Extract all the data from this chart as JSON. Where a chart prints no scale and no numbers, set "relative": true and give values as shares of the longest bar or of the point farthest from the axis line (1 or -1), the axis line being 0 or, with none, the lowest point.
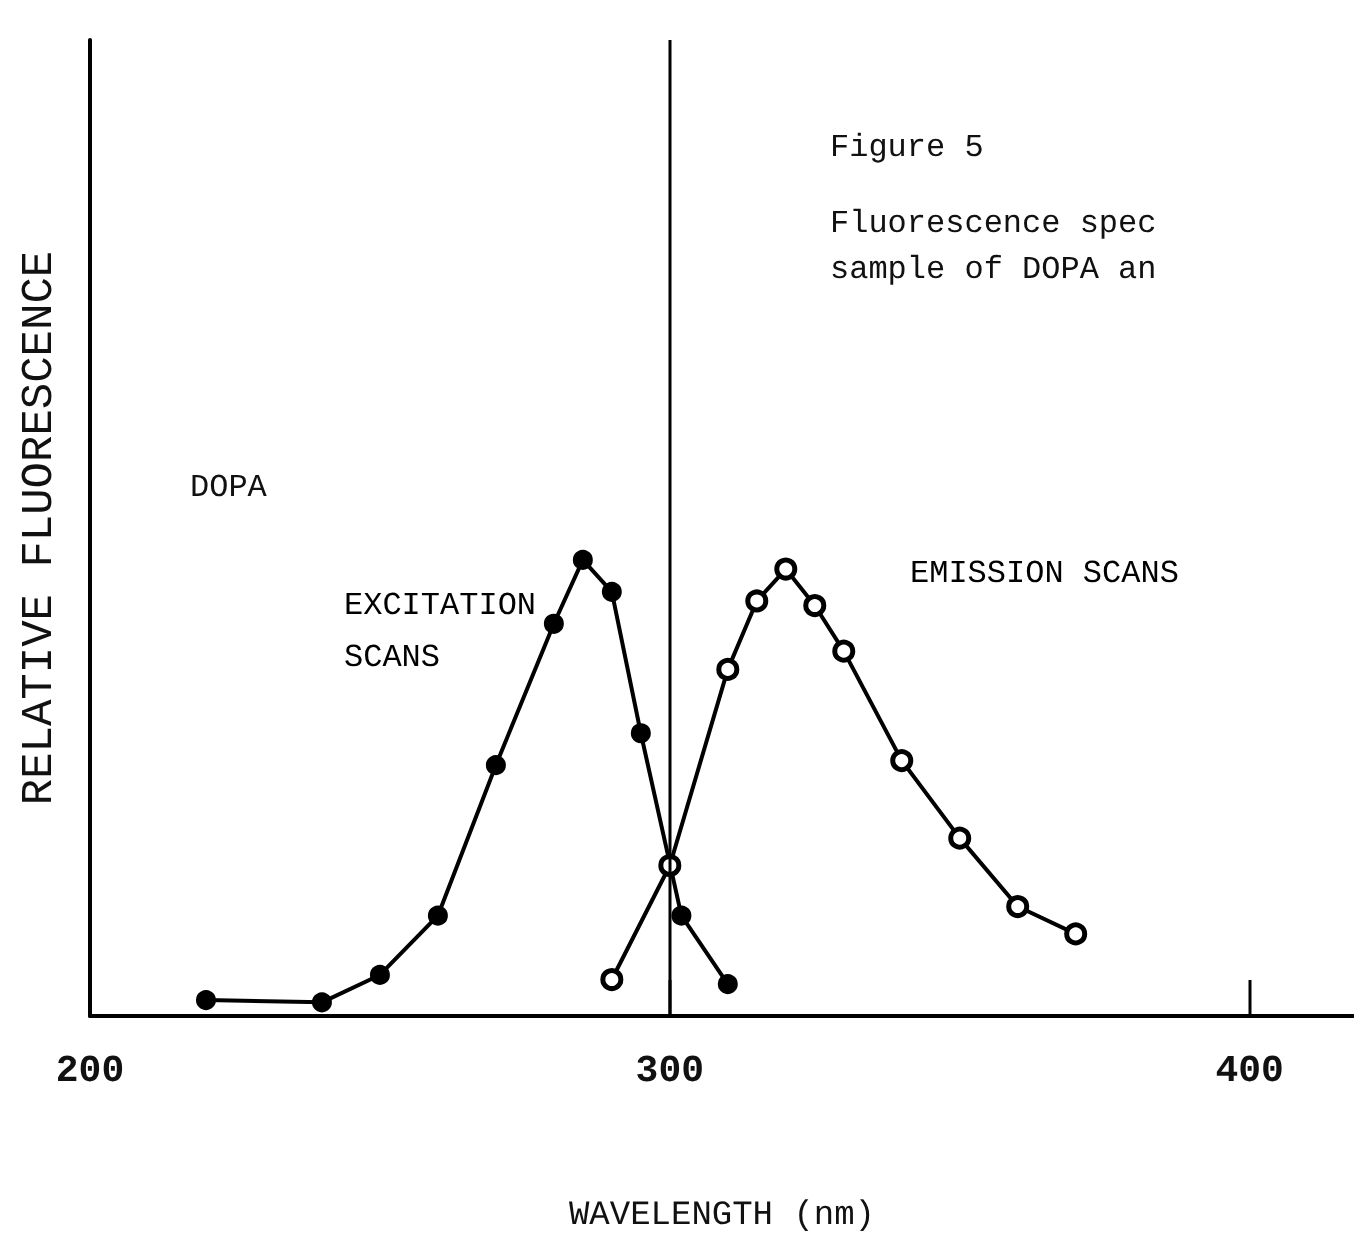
{
  "chart_data": {
    "type": "line",
    "xlabel": "WAVELENGTH (nm)",
    "ylabel": "RELATIVE FLUORESCENCE",
    "relative": true,
    "xlim": [
      200,
      418
    ],
    "xticks": [
      200,
      300,
      400
    ],
    "tick_labels": "x",
    "grid": false,
    "legend": false,
    "marker": "circle",
    "line_style": "solid",
    "annotations": [
      "Figure 5",
      "Fluorescence spec",
      "sample of DOPA an",
      "DOPA"
    ],
    "ref_lines": [
      {
        "axis": "x",
        "value": 300,
        "color": "#000000"
      }
    ],
    "series": [
      {
        "name": "EXCITATION SCANS",
        "color": "#000000",
        "x": [
          220,
          240,
          250,
          260,
          270,
          280,
          285,
          290,
          295,
          302,
          310
        ],
        "values": [
          0.035,
          0.03,
          0.09,
          0.22,
          0.55,
          0.86,
          1,
          0.93,
          0.62,
          0.22,
          0.07
        ]
      },
      {
        "name": "EMISSION SCANS",
        "color": "#000000",
        "x": [
          290,
          300,
          310,
          315,
          320,
          325,
          330,
          340,
          350,
          360,
          370
        ],
        "values": [
          0.08,
          0.33,
          0.76,
          0.91,
          0.98,
          0.9,
          0.8,
          0.56,
          0.39,
          0.24,
          0.18
        ]
      }
    ]
  }
}
